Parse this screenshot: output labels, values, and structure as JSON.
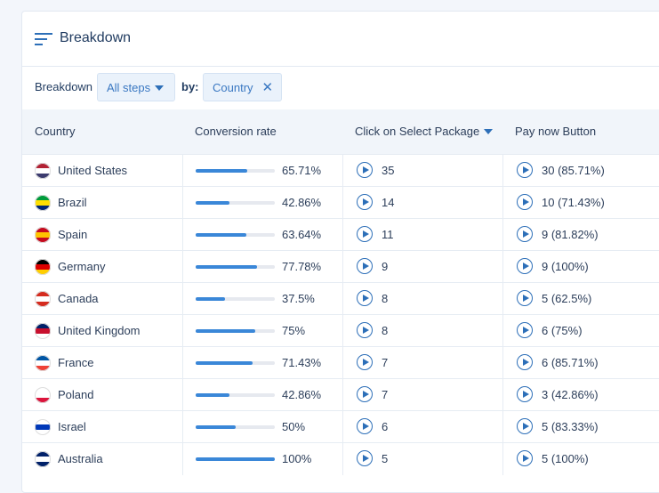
{
  "header": {
    "title": "Breakdown"
  },
  "filters": {
    "label": "Breakdown",
    "steps": "All steps",
    "by": "by:",
    "dimension": "Country"
  },
  "table": {
    "columns": [
      "Country",
      "Conversion rate",
      "Click on Select Package",
      "Pay now Button"
    ],
    "rows": [
      {
        "country": "United States",
        "conversion": {
          "value": 65.71,
          "label": "65.71%"
        },
        "clicks": 35,
        "pay": "30 (85.71%)"
      },
      {
        "country": "Brazil",
        "conversion": {
          "value": 42.86,
          "label": "42.86%"
        },
        "clicks": 14,
        "pay": "10 (71.43%)"
      },
      {
        "country": "Spain",
        "conversion": {
          "value": 63.64,
          "label": "63.64%"
        },
        "clicks": 11,
        "pay": "9 (81.82%)"
      },
      {
        "country": "Germany",
        "conversion": {
          "value": 77.78,
          "label": "77.78%"
        },
        "clicks": 9,
        "pay": "9 (100%)"
      },
      {
        "country": "Canada",
        "conversion": {
          "value": 37.5,
          "label": "37.5%"
        },
        "clicks": 8,
        "pay": "5 (62.5%)"
      },
      {
        "country": "United Kingdom",
        "conversion": {
          "value": 75,
          "label": "75%"
        },
        "clicks": 8,
        "pay": "6 (75%)"
      },
      {
        "country": "France",
        "conversion": {
          "value": 71.43,
          "label": "71.43%"
        },
        "clicks": 7,
        "pay": "6 (85.71%)"
      },
      {
        "country": "Poland",
        "conversion": {
          "value": 42.86,
          "label": "42.86%"
        },
        "clicks": 7,
        "pay": "3 (42.86%)"
      },
      {
        "country": "Israel",
        "conversion": {
          "value": 50,
          "label": "50%"
        },
        "clicks": 6,
        "pay": "5 (83.33%)"
      },
      {
        "country": "Australia",
        "conversion": {
          "value": 100,
          "label": "100%"
        },
        "clicks": 5,
        "pay": "5 (100%)"
      }
    ]
  }
}
